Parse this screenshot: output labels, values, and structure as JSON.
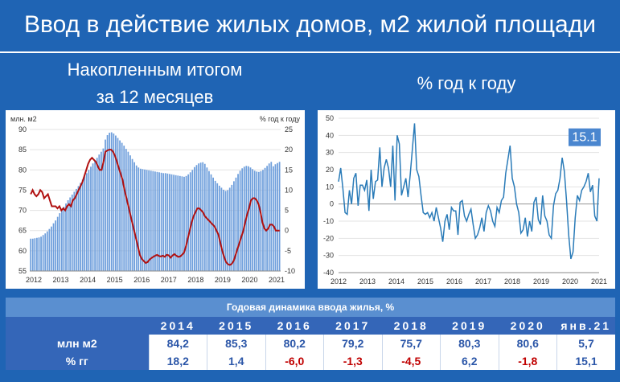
{
  "title": "Ввод в действие жилых домов, м2 жилой площади",
  "subtitle_left_1": "Накопленным итогом",
  "subtitle_left_2": "за 12 месяцев",
  "subtitle_right": "% год к году",
  "colors": {
    "bars": "#6f9fdc",
    "line_red": "#b01010",
    "line_blue": "#2a7bb8",
    "background": "#1f64b4",
    "badge": "#4a86cf"
  },
  "chart_data": [
    {
      "type": "bar",
      "left_axis_label": "млн. м2",
      "right_axis_label": "% год к году",
      "left_ylim": [
        55,
        90
      ],
      "right_ylim": [
        -10,
        25
      ],
      "x_ticks": [
        "2012",
        "2013",
        "2014",
        "2015",
        "2016",
        "2017",
        "2018",
        "2019",
        "2020",
        "2021"
      ],
      "series": [
        {
          "type": "bar",
          "values": [
            63.0,
            63.0,
            63.1,
            63.2,
            63.3,
            63.5,
            63.9,
            64.3,
            64.8,
            65.4,
            66.0,
            66.8,
            67.5,
            68.4,
            69.3,
            70.1,
            70.9,
            71.7,
            72.5,
            73.2,
            73.9,
            74.6,
            75.3,
            76.0,
            76.8,
            77.6,
            78.4,
            79.2,
            80.0,
            80.8,
            81.6,
            82.3,
            83.0,
            83.8,
            84.5,
            85.3,
            87.5,
            88.6,
            89.2,
            89.3,
            89.0,
            88.5,
            87.9,
            87.3,
            86.7,
            86.0,
            85.2,
            84.5,
            83.6,
            82.7,
            81.9,
            81.1,
            80.6,
            80.3,
            80.2,
            80.1,
            80.0,
            79.9,
            79.8,
            79.7,
            79.6,
            79.5,
            79.4,
            79.3,
            79.2,
            79.2,
            79.1,
            79.0,
            78.9,
            78.8,
            78.7,
            78.6,
            78.5,
            78.4,
            78.3,
            78.5,
            78.9,
            79.4,
            80.0,
            80.7,
            81.2,
            81.6,
            81.8,
            81.9,
            81.5,
            80.6,
            79.7,
            78.9,
            78.1,
            77.3,
            76.7,
            76.1,
            75.6,
            75.1,
            74.8,
            75.0,
            75.6,
            76.3,
            77.2,
            78.1,
            79.0,
            79.8,
            80.4,
            80.8,
            81.0,
            80.9,
            80.6,
            80.2,
            79.8,
            79.6,
            79.5,
            79.7,
            80.0,
            80.5,
            81.0,
            81.6,
            82.0,
            80.9,
            81.4,
            81.7,
            82.0
          ]
        },
        {
          "type": "line",
          "name": "% год к году",
          "values": [
            9,
            10,
            9,
            8.5,
            9,
            10,
            9.5,
            8,
            8.5,
            9,
            7.5,
            6,
            6,
            6,
            5.5,
            6,
            5,
            5.5,
            5,
            6,
            6.5,
            6,
            7.5,
            8,
            9,
            10,
            11,
            12,
            13.5,
            15,
            16.5,
            17.5,
            18,
            17.5,
            17,
            16,
            15,
            15,
            17,
            19.5,
            19.8,
            20,
            20,
            19.5,
            18.5,
            17,
            15.5,
            14,
            12.5,
            10,
            8,
            6,
            4,
            2,
            0,
            -2,
            -4,
            -6,
            -7,
            -7.5,
            -8,
            -7.8,
            -7.2,
            -6.8,
            -6.5,
            -6.2,
            -6,
            -6.3,
            -6.4,
            -6.2,
            -6.5,
            -6,
            -6.1,
            -6.7,
            -6.2,
            -5.8,
            -6.2,
            -6.5,
            -6.4,
            -6,
            -5.5,
            -4,
            -2,
            0,
            2,
            3.5,
            4.5,
            5.5,
            5.5,
            5,
            4.5,
            3.5,
            3,
            2.5,
            2,
            1.5,
            1,
            0,
            -1,
            -3,
            -5,
            -6.5,
            -7.8,
            -8.3,
            -8.5,
            -8.2,
            -7.5,
            -6,
            -4.5,
            -3,
            -1.5,
            0,
            2,
            4,
            5.5,
            7.5,
            8,
            8,
            7.5,
            6.5,
            4.5,
            2,
            0.5,
            0,
            0.5,
            1.5,
            1.5,
            1,
            0,
            0,
            0
          ]
        }
      ]
    },
    {
      "type": "line",
      "ylim": [
        -40,
        50
      ],
      "y_ticks": [
        50,
        40,
        30,
        20,
        10,
        0,
        -10,
        -20,
        -30,
        -40
      ],
      "x_ticks": [
        "2012",
        "2013",
        "2014",
        "2015",
        "2016",
        "2017",
        "2018",
        "2019",
        "2020",
        "2021"
      ],
      "last_value_label": "15.1",
      "series": [
        {
          "name": "% год к году",
          "values": [
            13,
            21,
            9,
            -5,
            -6,
            8,
            0,
            15,
            18,
            -1,
            11,
            11,
            8,
            14,
            -4,
            20,
            3,
            13,
            14,
            33,
            10,
            21,
            26,
            21,
            10,
            34,
            2,
            40,
            35,
            5,
            10,
            15,
            4,
            17,
            32,
            47,
            20,
            16,
            5,
            -5,
            -6,
            -5,
            -8,
            -5,
            -10,
            -2,
            -8,
            -14,
            -22,
            -10,
            -6,
            -15,
            -2,
            -4,
            -4,
            -18,
            1,
            2,
            -7,
            -10,
            -6,
            -3,
            -12,
            -20,
            -18,
            -14,
            -8,
            -16,
            -5,
            -1,
            -4,
            -10,
            -13,
            -2,
            -5,
            2,
            4,
            18,
            26,
            34,
            15,
            10,
            0,
            -5,
            -17,
            -15,
            -8,
            -19,
            -10,
            -16,
            1,
            4,
            -9,
            -12,
            5,
            -7,
            -10,
            -18,
            -20,
            -1,
            6,
            8,
            15,
            27,
            19,
            2,
            -18,
            -32,
            -28,
            -8,
            5,
            2,
            8,
            10,
            13,
            18,
            7,
            11,
            -7,
            -10,
            15
          ]
        }
      ]
    }
  ],
  "table": {
    "header": "Годовая динамика ввода жилья, %",
    "columns": [
      "2014",
      "2015",
      "2016",
      "2017",
      "2018",
      "2019",
      "2020",
      "янв.21"
    ],
    "rows": [
      {
        "label": "млн м2",
        "values": [
          "84,2",
          "85,3",
          "80,2",
          "79,2",
          "75,7",
          "80,3",
          "80,6",
          "5,7"
        ]
      },
      {
        "label": "% гг",
        "values": [
          "18,2",
          "1,4",
          "-6,0",
          "-1,3",
          "-4,5",
          "6,2",
          "-1,8",
          "15,1"
        ]
      }
    ]
  }
}
